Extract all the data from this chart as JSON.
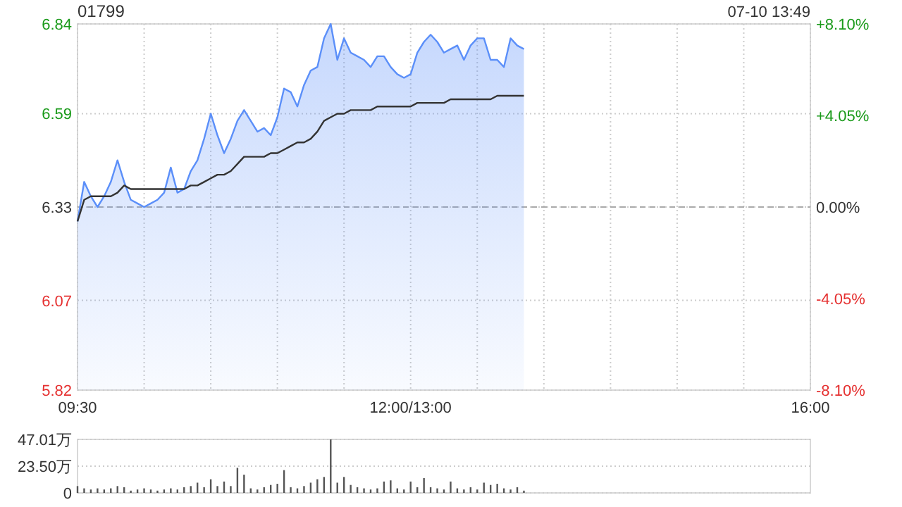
{
  "chart_data": [
    {
      "type": "area",
      "title": "01799",
      "annotations": [
        "07-10 13:49"
      ],
      "categories": [
        "09:30",
        null,
        null,
        null,
        null,
        null,
        null,
        null,
        null,
        null,
        null,
        null,
        null,
        null,
        null,
        null,
        null,
        null,
        null,
        null,
        null,
        null,
        null,
        null,
        null,
        null,
        null,
        null,
        null,
        null,
        null,
        null,
        null,
        null,
        null,
        null,
        null,
        null,
        null,
        null,
        null,
        null,
        null,
        null,
        null,
        null,
        null,
        null,
        null,
        null,
        "12:00/13:00",
        null,
        null,
        null,
        null,
        null,
        null,
        null,
        null,
        null,
        null,
        null,
        null,
        null,
        null,
        null,
        null,
        null,
        null,
        null,
        null,
        null,
        null,
        null,
        null,
        null,
        null,
        null,
        null,
        null,
        null,
        null,
        null,
        null,
        null,
        null,
        null,
        null,
        null,
        null,
        null,
        null,
        null,
        null,
        null,
        null,
        null,
        null,
        null,
        null,
        null,
        null,
        null,
        null,
        null,
        null,
        null,
        null,
        null,
        null,
        "16:00"
      ],
      "ylim": [
        5.82,
        6.84
      ],
      "yticks": [
        5.82,
        6.07,
        6.33,
        6.59,
        6.84
      ],
      "y2lim": [
        -8.1,
        8.1
      ],
      "y2ticks": [
        {
          "value": -8.1,
          "label": "-8.10%"
        },
        {
          "value": -4.05,
          "label": "-4.05%"
        },
        {
          "value": 0,
          "label": "0.00%"
        },
        {
          "value": 4.05,
          "label": "+4.05%"
        },
        {
          "value": 8.1,
          "label": "+8.10%"
        }
      ],
      "grid": true,
      "ref_lines": [
        {
          "axis": "y",
          "value": 6.33,
          "color": "#aaaaaa",
          "line_style": "dashed"
        }
      ],
      "series": [
        {
          "color": "#5b8ff9",
          "values": [
            6.29,
            6.4,
            6.36,
            6.33,
            6.36,
            6.4,
            6.46,
            6.4,
            6.35,
            6.34,
            6.33,
            6.34,
            6.35,
            6.37,
            6.44,
            6.37,
            6.38,
            6.43,
            6.46,
            6.52,
            6.59,
            6.53,
            6.48,
            6.52,
            6.57,
            6.6,
            6.57,
            6.54,
            6.55,
            6.53,
            6.58,
            6.66,
            6.65,
            6.61,
            6.67,
            6.71,
            6.72,
            6.8,
            6.84,
            6.74,
            6.8,
            6.76,
            6.75,
            6.74,
            6.72,
            6.75,
            6.75,
            6.72,
            6.7,
            6.69,
            6.7,
            6.76,
            6.79,
            6.81,
            6.79,
            6.76,
            6.77,
            6.78,
            6.74,
            6.78,
            6.8,
            6.8,
            6.74,
            6.74,
            6.72,
            6.8,
            6.78,
            6.77,
            null,
            null,
            null,
            null,
            null,
            null,
            null,
            null,
            null,
            null,
            null,
            null,
            null,
            null,
            null,
            null,
            null,
            null,
            null,
            null,
            null,
            null,
            null,
            null,
            null,
            null,
            null,
            null,
            null,
            null,
            null,
            null,
            null,
            null,
            null,
            null,
            null,
            null,
            null,
            null,
            null,
            null,
            null
          ]
        },
        {
          "type": "line",
          "color": "#333333",
          "values": [
            6.29,
            6.35,
            6.36,
            6.36,
            6.36,
            6.36,
            6.37,
            6.39,
            6.38,
            6.38,
            6.38,
            6.38,
            6.38,
            6.38,
            6.38,
            6.38,
            6.38,
            6.39,
            6.39,
            6.4,
            6.41,
            6.42,
            6.42,
            6.43,
            6.45,
            6.47,
            6.47,
            6.47,
            6.47,
            6.48,
            6.48,
            6.49,
            6.5,
            6.51,
            6.51,
            6.52,
            6.54,
            6.57,
            6.58,
            6.59,
            6.59,
            6.6,
            6.6,
            6.6,
            6.6,
            6.61,
            6.61,
            6.61,
            6.61,
            6.61,
            6.61,
            6.62,
            6.62,
            6.62,
            6.62,
            6.62,
            6.63,
            6.63,
            6.63,
            6.63,
            6.63,
            6.63,
            6.63,
            6.64,
            6.64,
            6.64,
            6.64,
            6.64,
            null,
            null,
            null,
            null,
            null,
            null,
            null,
            null,
            null,
            null,
            null,
            null,
            null,
            null,
            null,
            null,
            null,
            null,
            null,
            null,
            null,
            null,
            null,
            null,
            null,
            null,
            null,
            null,
            null,
            null,
            null,
            null,
            null,
            null,
            null,
            null,
            null,
            null,
            null,
            null,
            null,
            null,
            null
          ]
        }
      ]
    },
    {
      "type": "bar",
      "tick_labels": "y",
      "grid": "y",
      "categories": [
        null,
        null,
        null,
        null,
        null,
        null,
        null,
        null,
        null,
        null,
        null,
        null,
        null,
        null,
        null,
        null,
        null,
        null,
        null,
        null,
        null,
        null,
        null,
        null,
        null,
        null,
        null,
        null,
        null,
        null,
        null,
        null,
        null,
        null,
        null,
        null,
        null,
        null,
        null,
        null,
        null,
        null,
        null,
        null,
        null,
        null,
        null,
        null,
        null,
        null,
        null,
        null,
        null,
        null,
        null,
        null,
        null,
        null,
        null,
        null,
        null,
        null,
        null,
        null,
        null,
        null,
        null,
        null,
        null,
        null,
        null,
        null,
        null,
        null,
        null,
        null,
        null,
        null,
        null,
        null,
        null,
        null,
        null,
        null,
        null,
        null,
        null,
        null,
        null,
        null,
        null,
        null,
        null,
        null,
        null,
        null,
        null,
        null,
        null,
        null,
        null,
        null,
        null,
        null,
        null,
        null,
        null,
        null,
        null,
        null,
        null
      ],
      "ylim": [
        0,
        47.01
      ],
      "yticks": [
        0,
        {
          "value": 23.5,
          "label": "23.50万"
        },
        {
          "value": 47.01,
          "label": "47.01万"
        }
      ],
      "series": [
        {
          "color": "#555555",
          "values": [
            6,
            4,
            3,
            4,
            3,
            4,
            6,
            5,
            2,
            3,
            4,
            3,
            2,
            3,
            4,
            3,
            5,
            6,
            9,
            5,
            12,
            6,
            10,
            6,
            22,
            16,
            4,
            3,
            5,
            7,
            8,
            20,
            5,
            4,
            6,
            9,
            12,
            14,
            47,
            9,
            14,
            7,
            5,
            4,
            3,
            4,
            10,
            11,
            4,
            3,
            10,
            5,
            13,
            5,
            4,
            3,
            10,
            4,
            3,
            5,
            3,
            9,
            7,
            8,
            4,
            3,
            5,
            2,
            null,
            null,
            null,
            null,
            null,
            null,
            null,
            null,
            null,
            null,
            null,
            null,
            null,
            null,
            null,
            null,
            null,
            null,
            null,
            null,
            null,
            null,
            null,
            null,
            null,
            null,
            null,
            null,
            null,
            null,
            null,
            null,
            null,
            null,
            null,
            null,
            null,
            null,
            null,
            null,
            null,
            null,
            null
          ]
        }
      ]
    }
  ]
}
